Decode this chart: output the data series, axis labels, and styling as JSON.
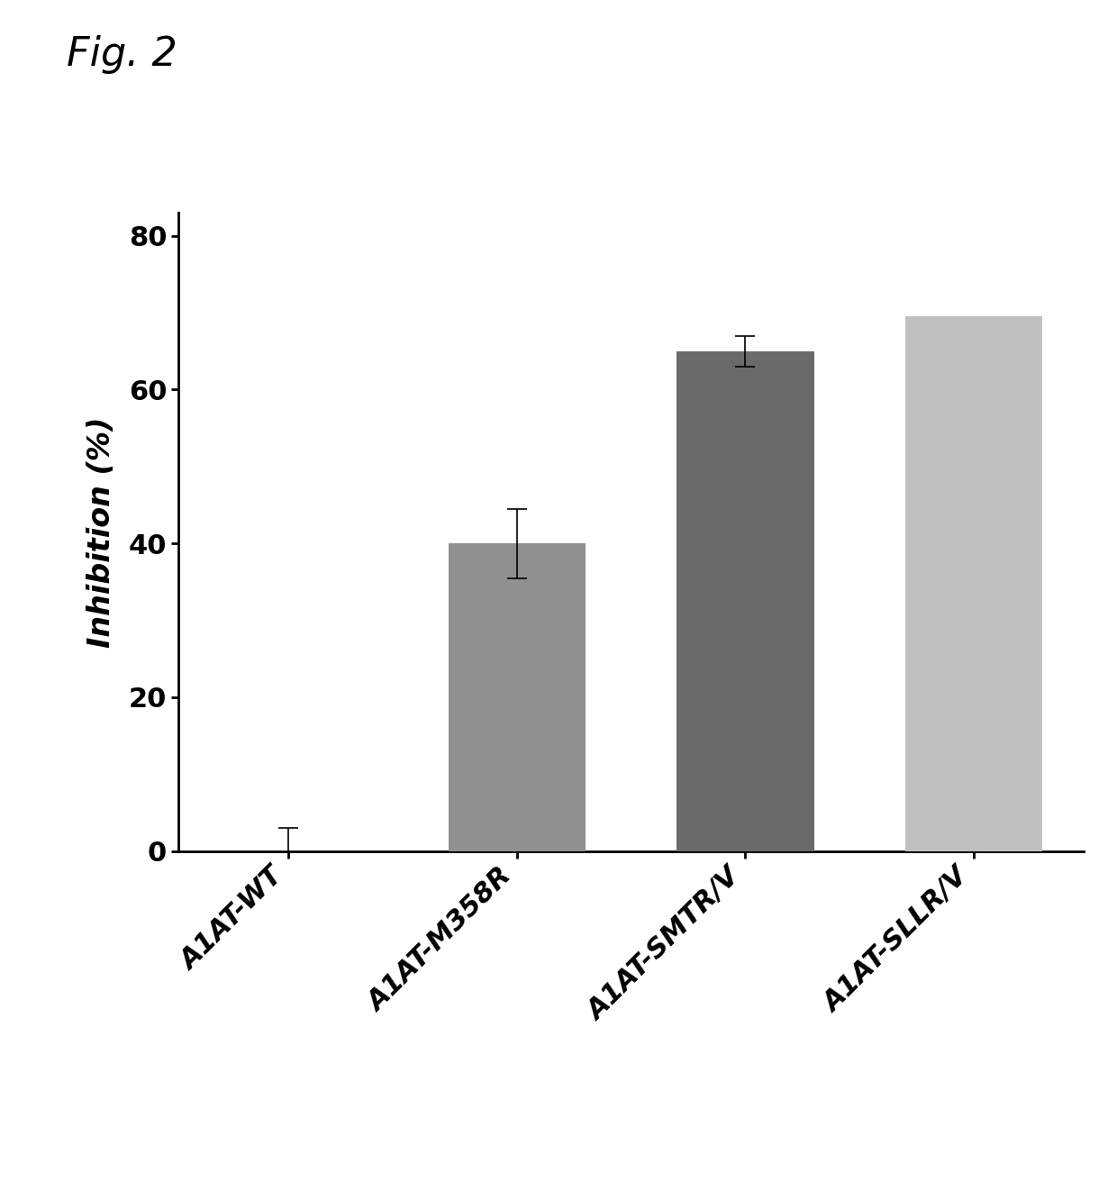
{
  "categories": [
    "A1AT-WT",
    "A1AT-M358R",
    "A1AT-SMTR/V",
    "A1AT-SLLR/V"
  ],
  "values": [
    0.0,
    40.0,
    65.0,
    69.5
  ],
  "errors": [
    3.0,
    4.5,
    2.0,
    0.0
  ],
  "bar_colors": [
    "#c8c8c8",
    "#909090",
    "#6a6a6a",
    "#c0c0c0"
  ],
  "ylabel": "Inhibition (%)",
  "ylim": [
    0,
    83
  ],
  "yticks": [
    0,
    20,
    40,
    60,
    80
  ],
  "fig_label": "Fig. 2",
  "background_color": "#ffffff",
  "bar_width": 0.6,
  "title_fontsize": 32,
  "axis_fontsize": 24,
  "tick_fontsize": 22,
  "label_fontsize": 22
}
